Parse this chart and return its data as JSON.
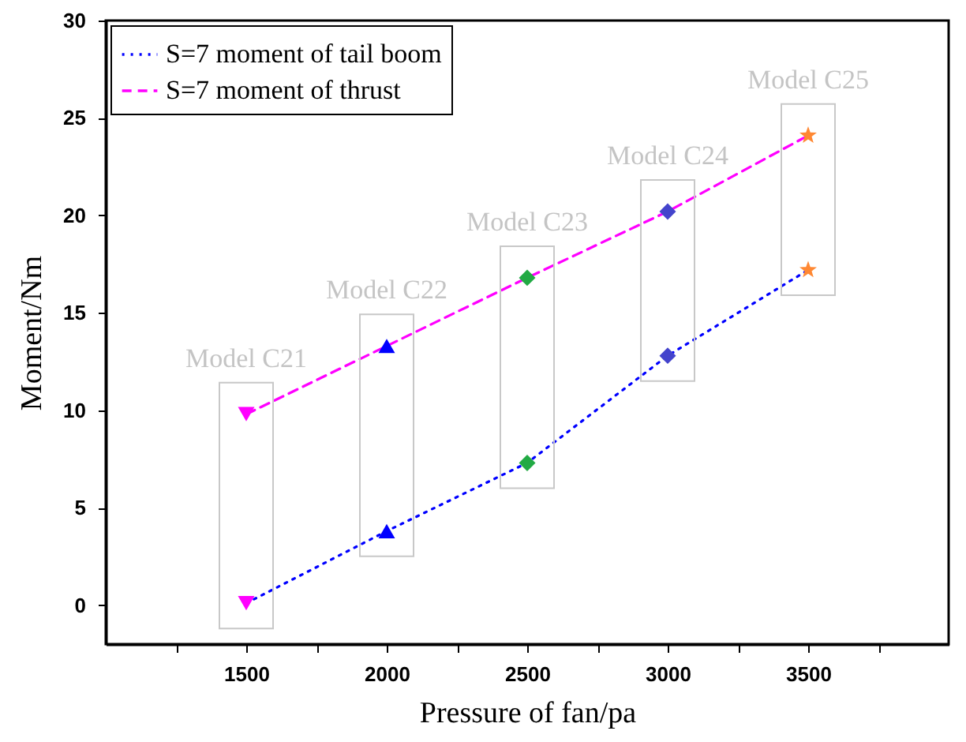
{
  "chart_data": {
    "type": "line",
    "xlabel": "Pressure of fan/pa",
    "ylabel": "Moment/Nm",
    "xlim": [
      1000,
      4000
    ],
    "xticks": [
      {
        "value": 1250,
        "label": null
      },
      1500,
      {
        "value": 1750,
        "label": null
      },
      2000,
      {
        "value": 2250,
        "label": null
      },
      2500,
      {
        "value": 2750,
        "label": null
      },
      3000,
      {
        "value": 3250,
        "label": null
      },
      3500,
      {
        "value": 3750,
        "label": null
      }
    ],
    "ylim": [
      -2,
      30
    ],
    "yticks": [
      0,
      5,
      10,
      15,
      20,
      25,
      30
    ],
    "grid": false,
    "legend": "top left",
    "series": [
      {
        "name": "S=7 moment of tail boom",
        "type": "line",
        "color": "#0000ff",
        "line_style": "dotted",
        "x": [
          1500,
          2000,
          2500,
          3000,
          3500
        ],
        "values": [
          0.1,
          3.8,
          7.3,
          12.8,
          17.2
        ]
      },
      {
        "name": "S=7 moment of thrust",
        "type": "line",
        "color": "#ff00ff",
        "line_style": "dashed",
        "x": [
          1500,
          2000,
          2500,
          3000,
          3500
        ],
        "values": [
          9.8,
          13.3,
          16.8,
          20.2,
          24.1
        ]
      },
      {
        "type": "scatter",
        "color": "#ff00ff",
        "marker": "triangle-down",
        "x": [
          1500,
          1500
        ],
        "values": [
          0.1,
          9.8
        ]
      },
      {
        "type": "scatter",
        "color": "#0000ff",
        "marker": "triangle",
        "x": [
          2000,
          2000
        ],
        "values": [
          3.8,
          13.3
        ]
      },
      {
        "type": "scatter",
        "color": "#22aa44",
        "marker": "diamond",
        "x": [
          2500,
          2500
        ],
        "values": [
          7.3,
          16.8
        ]
      },
      {
        "type": "scatter",
        "color": "#4444cc",
        "marker": "diamond",
        "x": [
          3000,
          3000
        ],
        "values": [
          12.8,
          20.2
        ]
      },
      {
        "type": "scatter",
        "color": "#ff8833",
        "marker": "star",
        "x": [
          3500,
          3500
        ],
        "values": [
          17.2,
          24.1
        ]
      }
    ],
    "annotations": [
      "Model C21",
      "Model C22",
      "Model C23",
      "Model C24",
      "Model C25"
    ]
  }
}
